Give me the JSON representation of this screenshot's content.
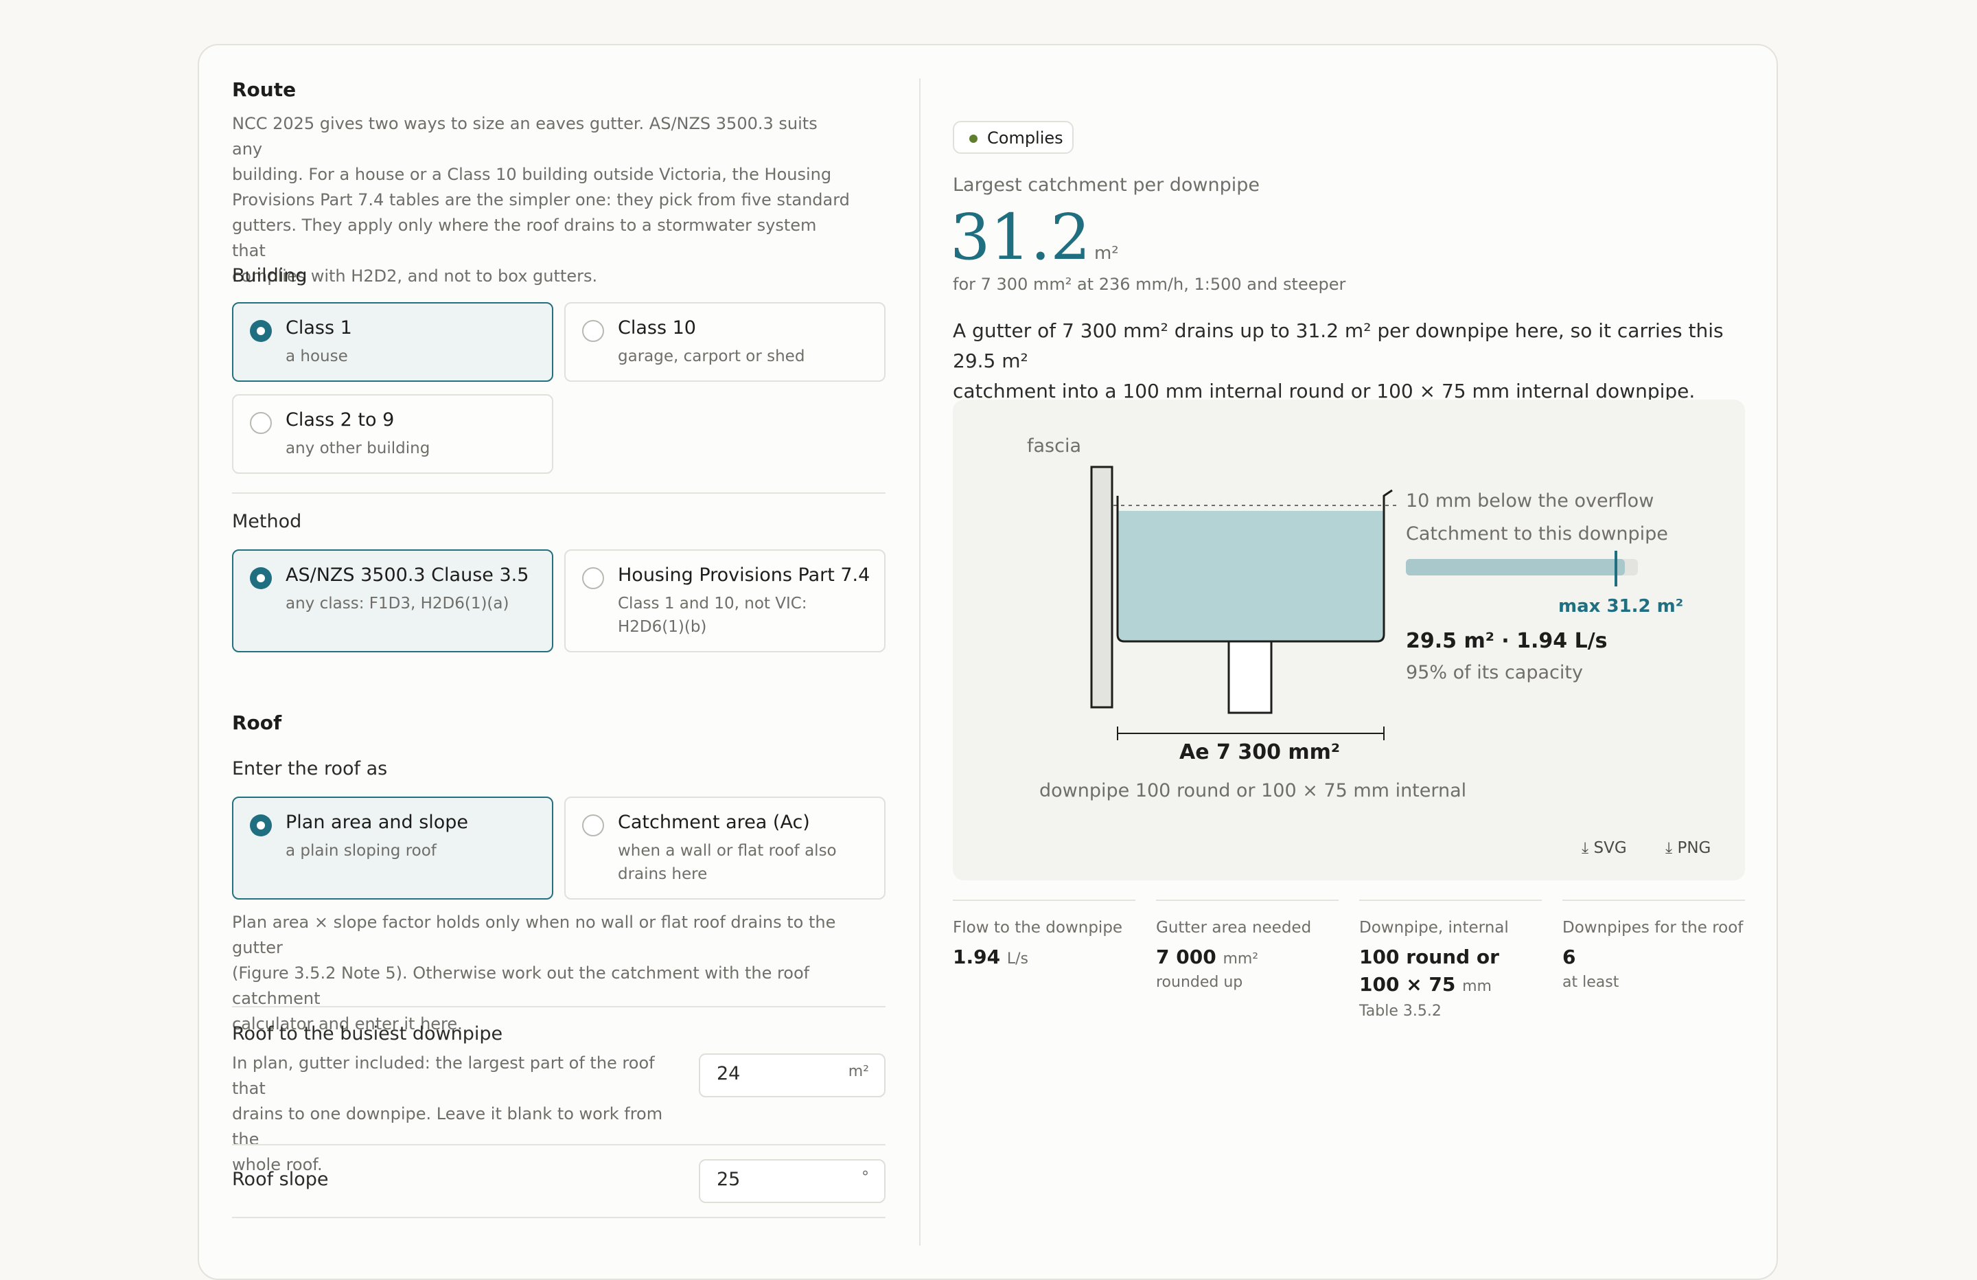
{
  "route": {
    "title": "Route",
    "intro": [
      "NCC 2025 gives two ways to size an eaves gutter. AS/NZS 3500.3 suits any",
      "building. For a house or a Class 10 building outside Victoria, the Housing",
      "Provisions Part 7.4 tables are the simpler one: they pick from five standard",
      "gutters. They apply only where the roof drains to a stormwater system that",
      "complies with H2D2, and not to box gutters."
    ]
  },
  "building": {
    "label": "Building",
    "options": [
      {
        "title": "Class 1",
        "sub": "a house",
        "selected": true
      },
      {
        "title": "Class 10",
        "sub": "garage, carport or shed",
        "selected": false
      },
      {
        "title": "Class 2 to 9",
        "sub": "any other building",
        "selected": false
      }
    ]
  },
  "method": {
    "label": "Method",
    "options": [
      {
        "title": "AS/NZS 3500.3 Clause 3.5",
        "sub": "any class: F1D3, H2D6(1)(a)",
        "selected": true
      },
      {
        "title": "Housing Provisions Part 7.4",
        "sub1": "Class 1 and 10, not VIC:",
        "sub2": "H2D6(1)(b)",
        "selected": false
      }
    ]
  },
  "roof": {
    "title": "Roof",
    "enter_label": "Enter the roof as",
    "options": [
      {
        "title": "Plan area and slope",
        "sub": "a plain sloping roof",
        "selected": true
      },
      {
        "title": "Catchment area (Ac)",
        "sub1": "when a wall or flat roof also",
        "sub2": "drains here",
        "selected": false
      }
    ],
    "note": [
      "Plan area × slope factor holds only when no wall or flat roof drains to the gutter",
      "(Figure 3.5.2 Note 5). Otherwise work out the catchment with the roof catchment",
      "calculator and enter it here."
    ],
    "busiest": {
      "label": "Roof to the busiest downpipe",
      "help": [
        "In plan, gutter included: the largest part of the roof that",
        "drains to one downpipe. Leave it blank to work from the",
        "whole roof."
      ],
      "value": "24",
      "unit": "m²"
    },
    "slope": {
      "label": "Roof slope",
      "value": "25",
      "unit": "°"
    }
  },
  "result": {
    "badge": "Complies",
    "heading": "Largest catchment per downpipe",
    "value": "31.2",
    "unit": "m²",
    "context": "for 7 300 mm² at 236 mm/h, 1:500 and steeper",
    "summary": [
      "A gutter of 7 300 mm² drains up to 31.2 m² per downpipe here, so it carries this 29.5 m²",
      "catchment into a 100 mm internal round or 100 × 75 mm internal downpipe."
    ],
    "status_color": "#5f7f2f",
    "accent_color": "#1f6f80"
  },
  "diagram": {
    "fascia": "fascia",
    "overflow": "10 mm below the overflow",
    "catchment_label": "Catchment to this downpipe",
    "catchment_fraction": 0.945,
    "max_label": "max 31.2 m²",
    "load": "29.5 m² · 1.94 L/s",
    "capacity": "95% of its capacity",
    "ae": "Ae 7 300 mm²",
    "downpipe": "downpipe 100 round or 100 × 75 mm internal",
    "svg_btn": "SVG",
    "png_btn": "PNG",
    "water_color": "#b4d3d5"
  },
  "stats": [
    {
      "key": "Flow to the downpipe",
      "value": "1.94",
      "unit": "L/s",
      "note": ""
    },
    {
      "key": "Gutter area needed",
      "value": "7 000",
      "unit": "mm²",
      "note": "rounded up"
    },
    {
      "key": "Downpipe, internal",
      "value1": "100 round or",
      "value2": "100 × 75",
      "unit": "mm",
      "note": "Table 3.5.2"
    },
    {
      "key": "Downpipes for the roof",
      "value": "6",
      "unit": "",
      "note": "at least"
    }
  ]
}
